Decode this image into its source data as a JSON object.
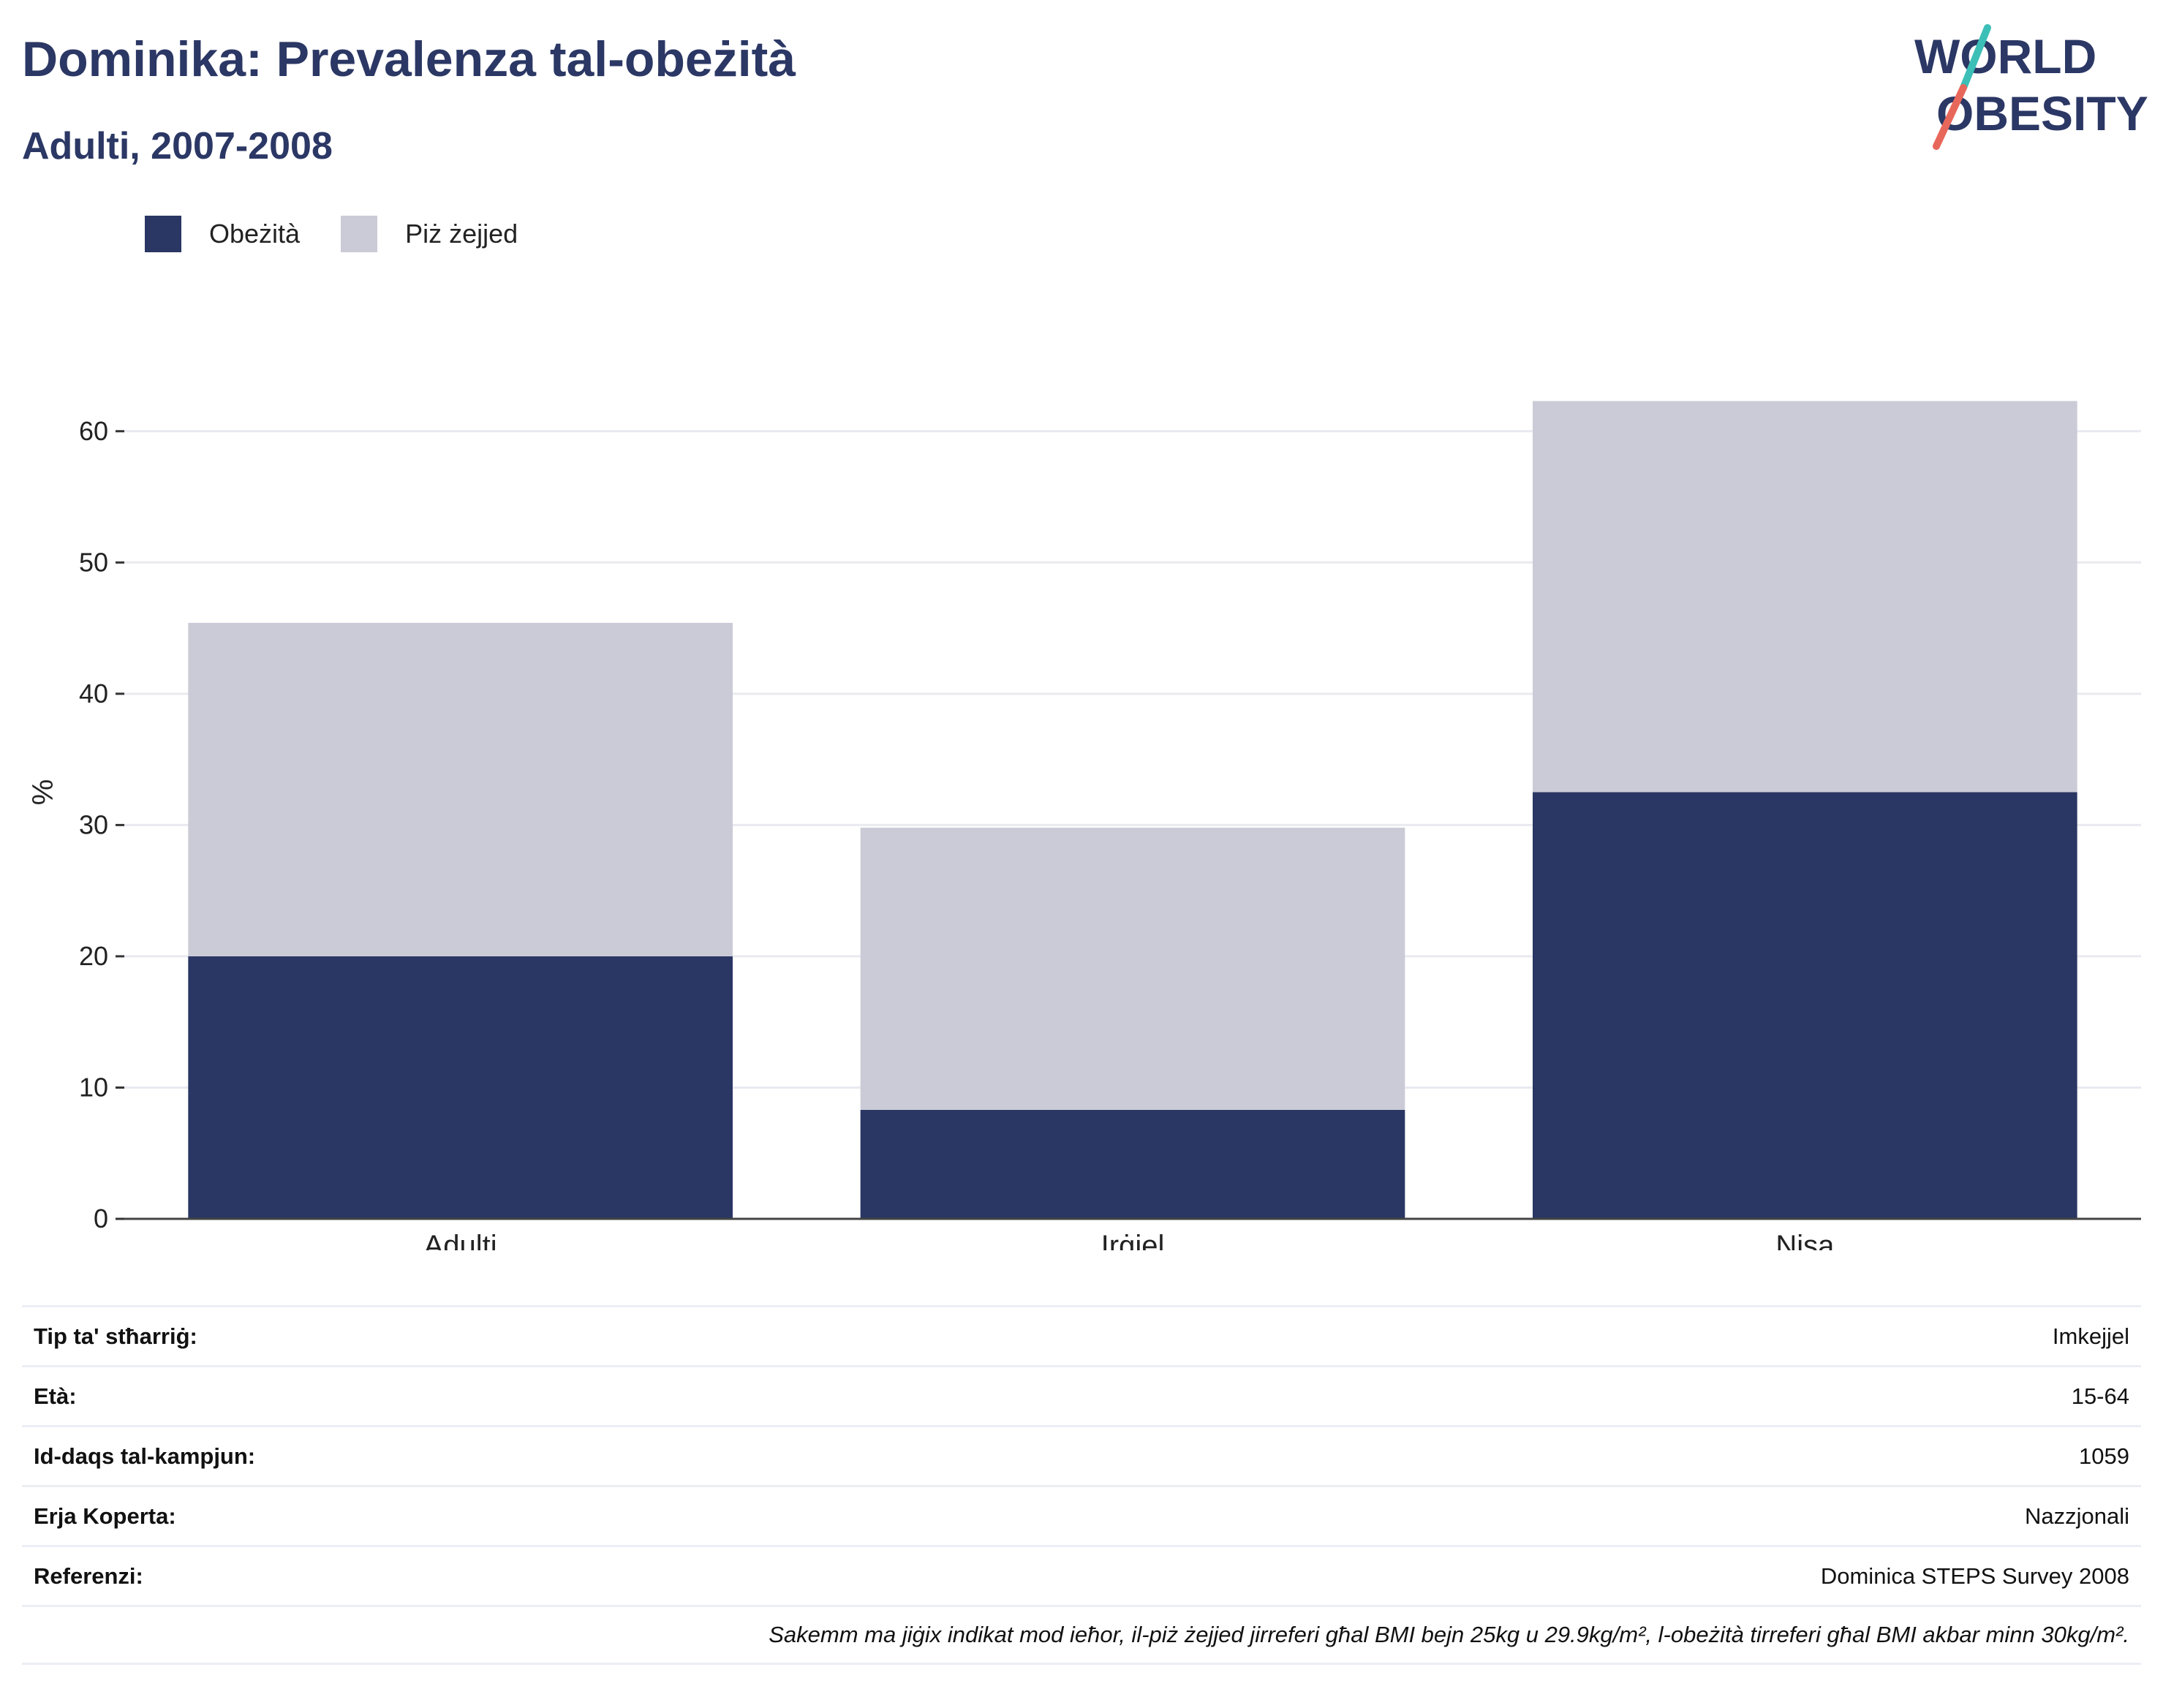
{
  "header": {
    "title": "Dominika: Prevalenza tal-obeżità",
    "subtitle": "Adulti, 2007-2008"
  },
  "logo": {
    "line1": "WORLD",
    "line2": "OBESITY",
    "accent_colors": [
      "#3cbfb6",
      "#e8675b"
    ]
  },
  "legend": {
    "items": [
      {
        "label": "Obeżità",
        "color": "#2a3663"
      },
      {
        "label": "Piż żejjed",
        "color": "#cacbd6"
      }
    ]
  },
  "chart_data": {
    "type": "bar",
    "stacked": true,
    "categories": [
      "Adulti",
      "Irġiel",
      "Nisa"
    ],
    "series": [
      {
        "name": "Obeżità",
        "values": [
          20.0,
          8.3,
          32.5
        ],
        "color": "#2a3663"
      },
      {
        "name": "Piż żejjed",
        "values": [
          25.4,
          21.5,
          29.8
        ],
        "color": "#cacbd6"
      }
    ],
    "ylabel": "%",
    "ylim": [
      0,
      65
    ],
    "yticks": [
      0,
      10,
      20,
      30,
      40,
      50,
      60
    ],
    "grid": true,
    "legend_position": "top-left"
  },
  "info": {
    "rows": [
      {
        "label": "Tip ta' stħarriġ:",
        "value": "Imkejjel"
      },
      {
        "label": "Età:",
        "value": "15-64"
      },
      {
        "label": "Id-daqs tal-kampjun:",
        "value": "1059"
      },
      {
        "label": "Erja Koperta:",
        "value": "Nazzjonali"
      },
      {
        "label": "Referenzi:",
        "value": "Dominica STEPS Survey 2008"
      }
    ],
    "note": "Sakemm ma jiġix indikat mod ieħor, il-piż żejjed jirreferi għal BMI bejn 25kg u 29.9kg/m², l-obeżità tirreferi għal BMI akbar minn 30kg/m²."
  }
}
